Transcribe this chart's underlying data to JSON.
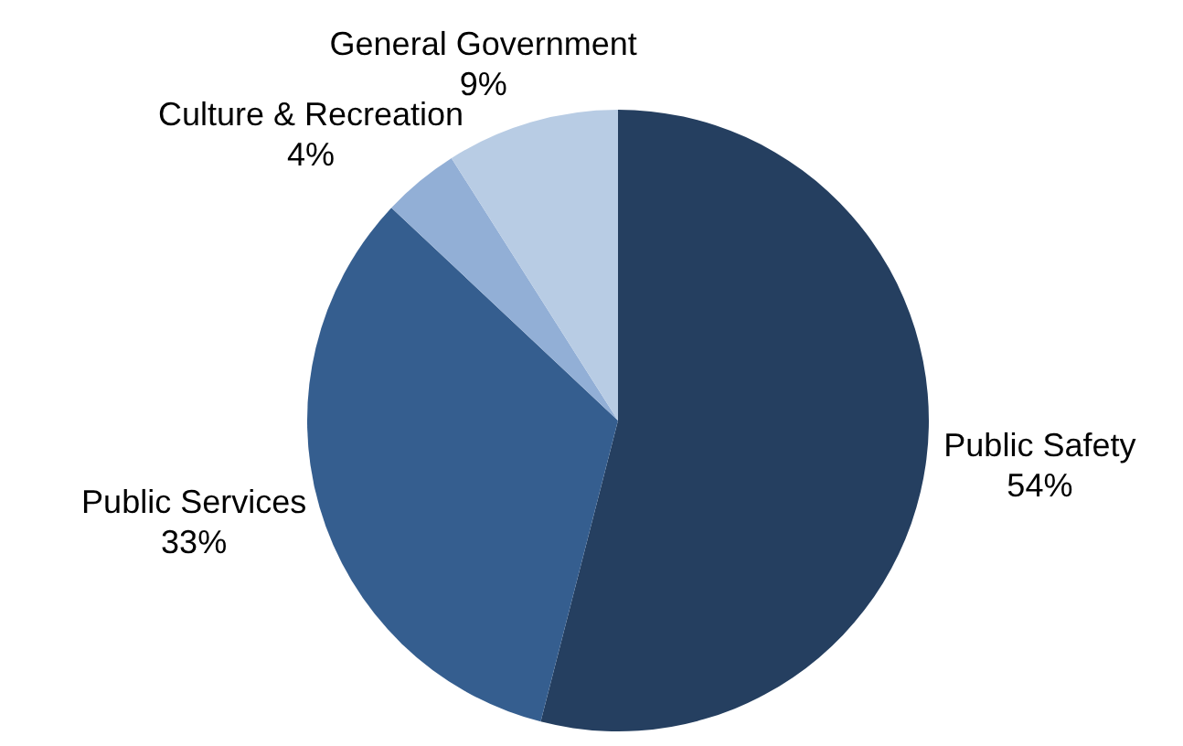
{
  "chart_data": {
    "type": "pie",
    "categories": [
      "Public Safety",
      "Public Services",
      "Culture & Recreation",
      "General Government"
    ],
    "values": [
      54,
      33,
      4,
      9
    ],
    "colors": [
      "#253f60",
      "#355e8f",
      "#92afd6",
      "#b8cce4"
    ],
    "value_labels": [
      "54%",
      "33%",
      "4%",
      "9%"
    ],
    "legend": false
  }
}
